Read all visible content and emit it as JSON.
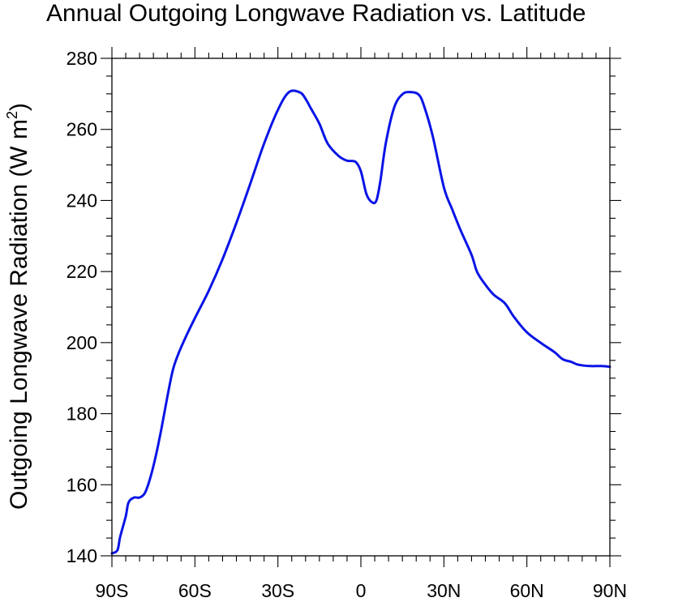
{
  "chart_data": {
    "type": "line",
    "title": "Annual Outgoing Longwave Radiation vs. Latitude",
    "ylabel": "Outgoing Longwave Radiation (W m",
    "ylabel_sup": "2",
    "ylabel_close": ")",
    "xlabel": "",
    "xlim": [
      -90,
      90
    ],
    "ylim": [
      140,
      280
    ],
    "x_ticks": [
      {
        "value": -90,
        "label": "90S"
      },
      {
        "value": -60,
        "label": "60S"
      },
      {
        "value": -30,
        "label": "30S"
      },
      {
        "value": 0,
        "label": "0"
      },
      {
        "value": 30,
        "label": "30N"
      },
      {
        "value": 60,
        "label": "60N"
      },
      {
        "value": 90,
        "label": "90N"
      }
    ],
    "y_ticks": [
      {
        "value": 140,
        "label": "140"
      },
      {
        "value": 160,
        "label": "160"
      },
      {
        "value": 180,
        "label": "180"
      },
      {
        "value": 200,
        "label": "200"
      },
      {
        "value": 220,
        "label": "220"
      },
      {
        "value": 240,
        "label": "240"
      },
      {
        "value": 260,
        "label": "260"
      },
      {
        "value": 280,
        "label": "280"
      }
    ],
    "grid": false,
    "series": [
      {
        "color": "#0a14e6",
        "x": [
          -90,
          -88,
          -87,
          -85,
          -84,
          -82,
          -80,
          -78,
          -76,
          -74,
          -72,
          -70,
          -68,
          -66,
          -63,
          -60,
          -55,
          -50,
          -45,
          -40,
          -35,
          -30,
          -26,
          -22,
          -20,
          -18,
          -15,
          -12,
          -8,
          -5,
          -2,
          0,
          2,
          4,
          5.6,
          7,
          9,
          12,
          15,
          18,
          21,
          23,
          26,
          30,
          33,
          36,
          40,
          42,
          45,
          48,
          52,
          55,
          58,
          60,
          62,
          66,
          70,
          73,
          76,
          78,
          80,
          83,
          87,
          90
        ],
        "values": [
          140.7,
          141.6,
          145.4,
          151.1,
          155.0,
          156.4,
          156.4,
          157.8,
          162.3,
          168.6,
          176.2,
          184.6,
          192.2,
          196.8,
          202.1,
          206.9,
          214.6,
          223.5,
          233.7,
          244.7,
          256.0,
          265.5,
          270.5,
          270.4,
          268.6,
          265.8,
          261.6,
          256.0,
          252.5,
          251.2,
          250.9,
          248.2,
          241.8,
          239.5,
          240.0,
          245.3,
          256.1,
          266.1,
          269.9,
          270.5,
          269.7,
          266.2,
          258.0,
          243.7,
          237.5,
          231.7,
          224.7,
          219.9,
          216.3,
          213.5,
          211.1,
          207.6,
          204.6,
          202.9,
          201.6,
          199.4,
          197.3,
          195.3,
          194.6,
          193.9,
          193.6,
          193.4,
          193.4,
          193.2
        ]
      }
    ]
  }
}
